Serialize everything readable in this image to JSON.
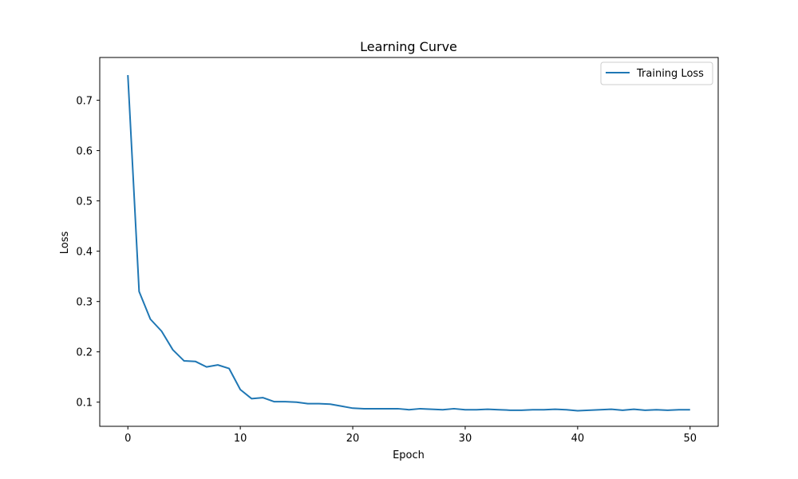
{
  "chart_data": {
    "type": "line",
    "title": "Learning Curve",
    "xlabel": "Epoch",
    "ylabel": "Loss",
    "xlim": [
      -2.5,
      52.5
    ],
    "ylim": [
      0.052,
      0.785
    ],
    "xticks": [
      0,
      10,
      20,
      30,
      40,
      50
    ],
    "yticks": [
      0.1,
      0.2,
      0.3,
      0.4,
      0.5,
      0.6,
      0.7
    ],
    "grid": false,
    "legend_position": "top-right",
    "series": [
      {
        "name": "Training Loss",
        "color": "#1f77b4",
        "x": [
          0,
          1,
          2,
          3,
          4,
          5,
          6,
          7,
          8,
          9,
          10,
          11,
          12,
          13,
          14,
          15,
          16,
          17,
          18,
          19,
          20,
          21,
          22,
          23,
          24,
          25,
          26,
          27,
          28,
          29,
          30,
          31,
          32,
          33,
          34,
          35,
          36,
          37,
          38,
          39,
          40,
          41,
          42,
          43,
          44,
          45,
          46,
          47,
          48,
          49,
          50
        ],
        "y": [
          0.75,
          0.32,
          0.265,
          0.241,
          0.204,
          0.182,
          0.181,
          0.17,
          0.174,
          0.167,
          0.125,
          0.107,
          0.109,
          0.101,
          0.101,
          0.1,
          0.097,
          0.097,
          0.096,
          0.092,
          0.088,
          0.087,
          0.087,
          0.087,
          0.087,
          0.085,
          0.087,
          0.086,
          0.085,
          0.087,
          0.085,
          0.085,
          0.086,
          0.085,
          0.084,
          0.084,
          0.085,
          0.085,
          0.086,
          0.085,
          0.083,
          0.084,
          0.085,
          0.086,
          0.084,
          0.086,
          0.084,
          0.085,
          0.084,
          0.085,
          0.085
        ]
      }
    ]
  }
}
